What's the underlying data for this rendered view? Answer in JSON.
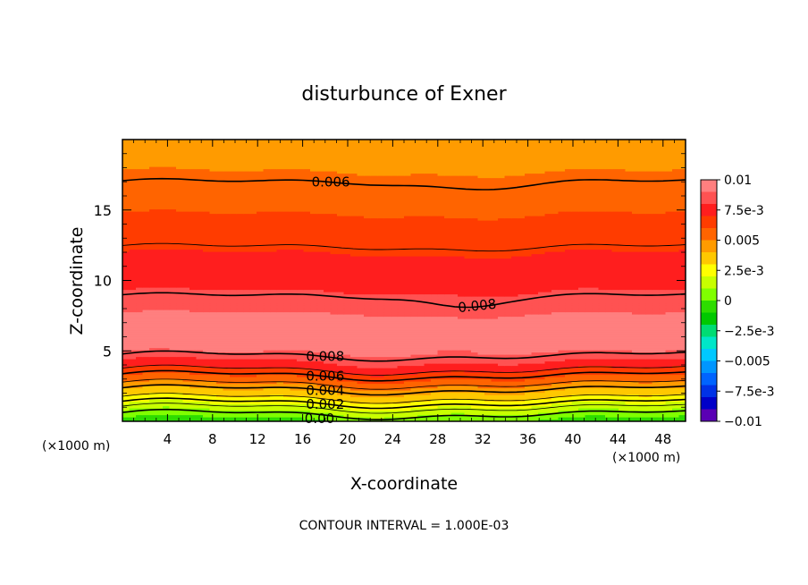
{
  "chart_data": {
    "type": "heatmap",
    "subtype": "filled-contour",
    "title": "disturbunce of Exner",
    "xlabel": "X-coordinate",
    "ylabel": "Z-coordinate",
    "x_unit": "(×1000 m)",
    "x_unit_right": "(×1000 m)",
    "xlim": [
      0,
      50
    ],
    "ylim": [
      0,
      20
    ],
    "x_ticks": [
      4,
      8,
      12,
      16,
      20,
      24,
      28,
      32,
      36,
      40,
      44,
      48
    ],
    "y_ticks": [
      5,
      10,
      15
    ],
    "footer": "CONTOUR INTERVAL = 1.000E-03",
    "contour_interval": 0.001,
    "colorbar": {
      "range": [
        -0.01,
        0.01
      ],
      "tick_labels": [
        "0.01",
        "7.5e-3",
        "0.005",
        "2.5e-3",
        "0",
        "−2.5e-3",
        "−0.005",
        "−7.5e-3",
        "−0.01"
      ],
      "colors": [
        "#ff7f7f",
        "#ff5252",
        "#ff1e1e",
        "#ff3c00",
        "#ff6400",
        "#ff9b00",
        "#ffc800",
        "#ffff00",
        "#c8ff00",
        "#80ff00",
        "#2ddc00",
        "#00c800",
        "#00dc73",
        "#00e6c8",
        "#00c8ff",
        "#0096ff",
        "#0064ff",
        "#0032e6",
        "#0000c8",
        "#5a00b4"
      ]
    },
    "field_profile": {
      "z": [
        0,
        0.5,
        1,
        1.5,
        2,
        2.5,
        3,
        3.5,
        4,
        4.5,
        5,
        6,
        7,
        8,
        9,
        10,
        11,
        12,
        13,
        14,
        15,
        16,
        17,
        18,
        19,
        20
      ],
      "value": [
        -0.0002,
        0.0008,
        0.0018,
        0.0028,
        0.0038,
        0.0049,
        0.0059,
        0.0068,
        0.0077,
        0.0085,
        0.0091,
        0.0095,
        0.0093,
        0.0088,
        0.0081,
        0.0077,
        0.0074,
        0.007,
        0.0067,
        0.0063,
        0.0059,
        0.0056,
        0.0053,
        0.0049,
        0.0046,
        0.0044
      ]
    },
    "contour_labels": [
      {
        "text": "0.006",
        "x": 18.5,
        "z": 17.0
      },
      {
        "text": "0.008",
        "x": 31.5,
        "z": 8.2
      },
      {
        "text": "0.008",
        "x": 18.0,
        "z": 4.6
      },
      {
        "text": "0.006",
        "x": 18.0,
        "z": 3.2
      },
      {
        "text": "0.004",
        "x": 18.0,
        "z": 2.2
      },
      {
        "text": "0.002",
        "x": 18.0,
        "z": 1.2
      },
      {
        "text": "0.00",
        "x": 17.5,
        "z": 0.2
      }
    ]
  }
}
